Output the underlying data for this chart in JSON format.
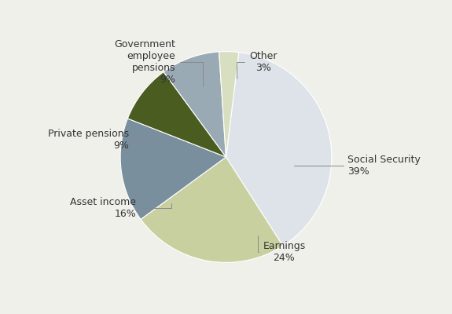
{
  "labels": [
    "Social Security",
    "Earnings",
    "Asset income",
    "Private pensions",
    "Government employee pensions",
    "Other"
  ],
  "values": [
    39,
    24,
    16,
    9,
    9,
    3
  ],
  "colors": [
    "#dde3e8",
    "#c9d0a0",
    "#7a8f9e",
    "#4a5c20",
    "#9aaab5",
    "#d8dfc0"
  ],
  "background_color": "#f0f0eb",
  "text_color": "#333333",
  "startangle": 83,
  "wedge_edge_color": "white",
  "wedge_linewidth": 0.8,
  "annotation_fontsize": 9,
  "annotation_color": "#333333",
  "leader_color": "#888888",
  "leader_lw": 0.7
}
